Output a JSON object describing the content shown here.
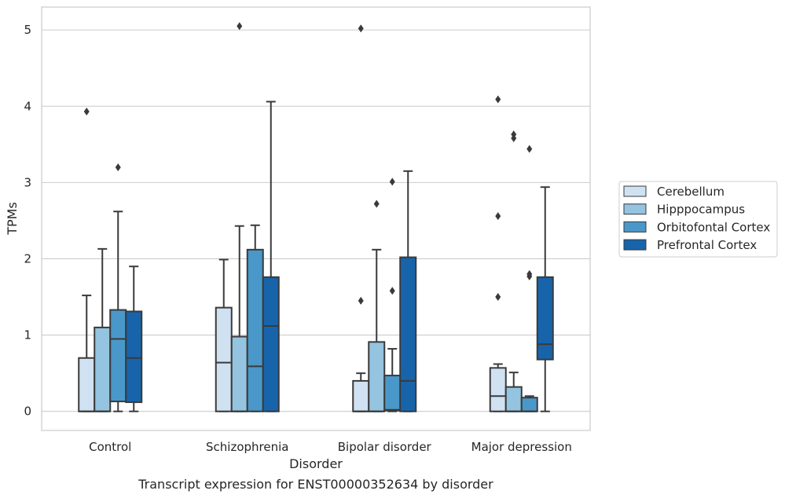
{
  "chart_data": {
    "type": "box",
    "caption": "Transcript expression for ENST00000352634 by disorder",
    "xlabel": "Disorder",
    "ylabel": "TPMs",
    "ylim": [
      -0.25,
      5.3
    ],
    "yticks": [
      0,
      1,
      2,
      3,
      4,
      5
    ],
    "grid": true,
    "legend_position": "right",
    "categories": [
      "Control",
      "Schizophrenia",
      "Bipolar disorder",
      "Major depression"
    ],
    "series": [
      {
        "name": "Cerebellum",
        "color": "#d0e1f2",
        "boxes": [
          {
            "whislo": 0,
            "q1": 0,
            "med": 0,
            "q3": 0.7,
            "whishi": 1.52,
            "fliers": [
              3.93
            ]
          },
          {
            "whislo": 0,
            "q1": 0,
            "med": 0.64,
            "q3": 1.36,
            "whishi": 1.99,
            "fliers": []
          },
          {
            "whislo": 0,
            "q1": 0,
            "med": 0,
            "q3": 0.4,
            "whishi": 0.5,
            "fliers": [
              1.45,
              5.02
            ]
          },
          {
            "whislo": 0,
            "q1": 0,
            "med": 0.2,
            "q3": 0.57,
            "whishi": 0.62,
            "fliers": [
              1.5,
              2.56,
              4.09
            ]
          }
        ]
      },
      {
        "name": "Hipppocampus",
        "color": "#94c4df",
        "boxes": [
          {
            "whislo": 0,
            "q1": 0,
            "med": 0,
            "q3": 1.1,
            "whishi": 2.13,
            "fliers": []
          },
          {
            "whislo": 0,
            "q1": 0,
            "med": 0,
            "q3": 0.98,
            "whishi": 2.43,
            "fliers": [
              5.05
            ]
          },
          {
            "whislo": 0,
            "q1": 0,
            "med": 0,
            "q3": 0.91,
            "whishi": 2.12,
            "fliers": [
              2.72
            ]
          },
          {
            "whislo": 0,
            "q1": 0,
            "med": 0,
            "q3": 0.32,
            "whishi": 0.51,
            "fliers": [
              3.58,
              3.63
            ]
          }
        ]
      },
      {
        "name": "Orbitofontal Cortex",
        "color": "#4a98c9",
        "boxes": [
          {
            "whislo": 0,
            "q1": 0.13,
            "med": 0.95,
            "q3": 1.33,
            "whishi": 2.62,
            "fliers": [
              3.2
            ]
          },
          {
            "whislo": 0,
            "q1": 0,
            "med": 0.59,
            "q3": 2.12,
            "whishi": 2.44,
            "fliers": []
          },
          {
            "whislo": 0,
            "q1": 0.01,
            "med": 0.02,
            "q3": 0.47,
            "whishi": 0.82,
            "fliers": [
              1.58,
              3.01
            ]
          },
          {
            "whislo": 0,
            "q1": 0,
            "med": 0,
            "q3": 0.18,
            "whishi": 0.2,
            "fliers": [
              1.77,
              1.8,
              3.44
            ]
          }
        ]
      },
      {
        "name": "Prefrontal Cortex",
        "color": "#1764ab",
        "boxes": [
          {
            "whislo": 0,
            "q1": 0.12,
            "med": 0.7,
            "q3": 1.31,
            "whishi": 1.9,
            "fliers": []
          },
          {
            "whislo": 0,
            "q1": 0,
            "med": 1.12,
            "q3": 1.76,
            "whishi": 4.06,
            "fliers": []
          },
          {
            "whislo": 0,
            "q1": 0,
            "med": 0.4,
            "q3": 2.02,
            "whishi": 3.15,
            "fliers": []
          },
          {
            "whislo": 0,
            "q1": 0.68,
            "med": 0.88,
            "q3": 1.76,
            "whishi": 2.94,
            "fliers": []
          }
        ]
      }
    ]
  }
}
